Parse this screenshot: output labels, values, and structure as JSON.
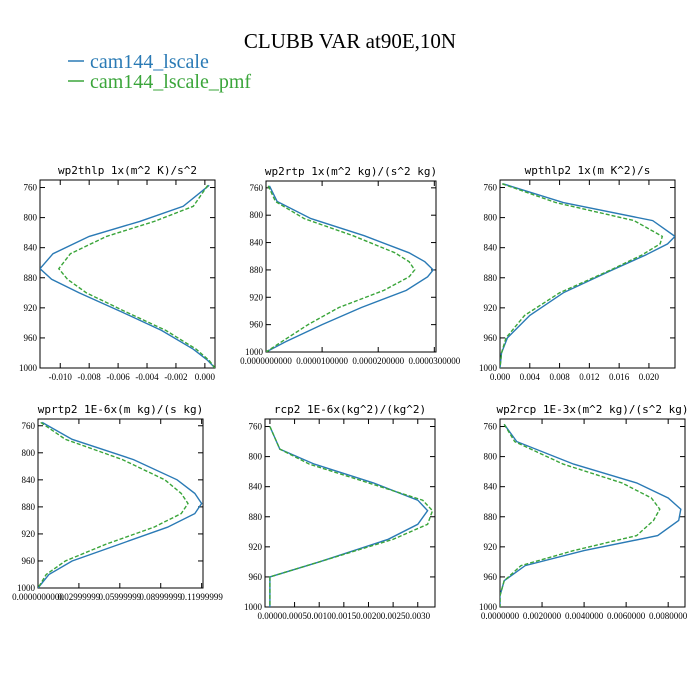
{
  "figure": {
    "title": "CLUBB VAR at90E,10N",
    "legend": [
      {
        "label": "cam144_lscale",
        "color": "#2a7ab5",
        "dash": false
      },
      {
        "label": "cam144_lscale_pmf",
        "color": "#3aa53a",
        "dash": true
      }
    ]
  },
  "chart_data": [
    {
      "type": "line",
      "title": "wp2thlp  1x(m^2 K)/s^2",
      "xlim": [
        -0.0114,
        0.0007
      ],
      "ylim": [
        1000,
        750
      ],
      "xticks": [
        -0.01,
        -0.008,
        -0.006,
        -0.004,
        -0.002,
        0.0
      ],
      "xtick_labels": [
        "-0.010",
        "-0.008",
        "-0.006",
        "-0.004",
        "-0.002",
        "0.000"
      ],
      "yticks": [
        760,
        800,
        840,
        880,
        920,
        960,
        1000
      ],
      "ytick_labels": [
        "760",
        "800",
        "840",
        "880",
        "920",
        "960",
        "1000"
      ],
      "y": [
        757,
        785,
        805,
        825,
        848,
        868,
        882,
        900,
        925,
        950,
        975,
        990,
        1000
      ],
      "series": [
        {
          "name": "cam144_lscale",
          "values": [
            0.0003,
            -0.0015,
            -0.0045,
            -0.008,
            -0.0105,
            -0.0114,
            -0.0106,
            -0.0087,
            -0.0058,
            -0.003,
            -0.0008,
            0.0002,
            0.0007
          ]
        },
        {
          "name": "cam144_lscale_pmf",
          "values": [
            0.0002,
            -0.0008,
            -0.0035,
            -0.0068,
            -0.0093,
            -0.0101,
            -0.0095,
            -0.0082,
            -0.0055,
            -0.0027,
            -0.0006,
            0.0003,
            0.0007
          ]
        }
      ]
    },
    {
      "type": "line",
      "title": "wp2rtp  1x(m^2 kg)/(s^2 kg)",
      "xlim": [
        0,
        3.03e-05
      ],
      "ylim": [
        1000,
        750
      ],
      "xticks": [
        0.0,
        1e-05,
        2e-05,
        3e-05
      ],
      "xtick_labels": [
        "0.0000000000",
        "0.0000100000",
        "0.0000200000",
        "0.0000300000"
      ],
      "yticks": [
        760,
        800,
        840,
        880,
        920,
        960,
        1000
      ],
      "ytick_labels": [
        "760",
        "800",
        "840",
        "880",
        "920",
        "960",
        "1000"
      ],
      "y": [
        757,
        780,
        805,
        830,
        855,
        868,
        880,
        890,
        910,
        935,
        960,
        985,
        1000
      ],
      "series": [
        {
          "name": "cam144_lscale",
          "values": [
            6e-07,
            2e-06,
            8e-06,
            1.75e-05,
            2.55e-05,
            2.83e-05,
            2.98e-05,
            2.88e-05,
            2.5e-05,
            1.7e-05,
            1e-05,
            3.5e-06,
            0.0
          ]
        },
        {
          "name": "cam144_lscale_pmf",
          "values": [
            4e-07,
            1.7e-06,
            6.8e-06,
            1.55e-05,
            2.3e-05,
            2.55e-05,
            2.65e-05,
            2.55e-05,
            2.1e-05,
            1.3e-05,
            7.5e-06,
            2.8e-06,
            0.0
          ]
        }
      ]
    },
    {
      "type": "line",
      "title": "wpthlp2  1x(m K^2)/s",
      "xlim": [
        0,
        0.0235
      ],
      "ylim": [
        1000,
        750
      ],
      "xticks": [
        0.0,
        0.004,
        0.008,
        0.012,
        0.016,
        0.02
      ],
      "xtick_labels": [
        "0.000",
        "0.004",
        "0.008",
        "0.012",
        "0.016",
        "0.020"
      ],
      "yticks": [
        760,
        800,
        840,
        880,
        920,
        960,
        1000
      ],
      "ytick_labels": [
        "760",
        "800",
        "840",
        "880",
        "920",
        "960",
        "1000"
      ],
      "y": [
        755,
        780,
        804,
        825,
        835,
        850,
        870,
        900,
        930,
        960,
        980,
        1000
      ],
      "series": [
        {
          "name": "cam144_lscale",
          "values": [
            0.0004,
            0.0085,
            0.0205,
            0.0235,
            0.0225,
            0.0195,
            0.015,
            0.0085,
            0.004,
            0.001,
            0.0002,
            0.0
          ]
        },
        {
          "name": "cam144_lscale_pmf",
          "values": [
            0.0003,
            0.0075,
            0.018,
            0.0218,
            0.0215,
            0.019,
            0.0148,
            0.008,
            0.0033,
            0.0008,
            0.0002,
            0.0
          ]
        }
      ]
    },
    {
      "type": "line",
      "title": "wprtp2  1E-6x(m kg)/(s kg)",
      "xlim": [
        0,
        0.121
      ],
      "ylim": [
        1000,
        750
      ],
      "xticks": [
        0.0,
        0.03,
        0.06,
        0.09,
        0.12
      ],
      "xtick_labels": [
        "0.0000000000",
        "0.02999999",
        "0.05999999",
        "0.08999999",
        "0.11999999"
      ],
      "yticks": [
        760,
        800,
        840,
        880,
        920,
        960,
        1000
      ],
      "ytick_labels": [
        "760",
        "800",
        "840",
        "880",
        "920",
        "960",
        "1000"
      ],
      "y": [
        755,
        780,
        810,
        840,
        860,
        875,
        890,
        910,
        935,
        960,
        980,
        1000
      ],
      "series": [
        {
          "name": "cam144_lscale",
          "values": [
            0.003,
            0.025,
            0.07,
            0.102,
            0.115,
            0.12,
            0.115,
            0.095,
            0.06,
            0.025,
            0.008,
            0.0
          ]
        },
        {
          "name": "cam144_lscale_pmf",
          "values": [
            0.002,
            0.02,
            0.062,
            0.093,
            0.105,
            0.11,
            0.105,
            0.085,
            0.05,
            0.02,
            0.006,
            0.0
          ]
        }
      ]
    },
    {
      "type": "line",
      "title": "rcp2  1E-6x(kg^2)/(kg^2)",
      "xlim": [
        -0.0001,
        0.00335
      ],
      "ylim": [
        1000,
        750
      ],
      "xticks": [
        0.0,
        0.0005,
        0.001,
        0.0015,
        0.002,
        0.0025,
        0.003
      ],
      "xtick_labels": [
        "0.0000",
        "0.0005",
        "0.0010",
        "0.0015",
        "0.0020",
        "0.0025",
        "0.0030"
      ],
      "yticks": [
        760,
        800,
        840,
        880,
        920,
        960,
        1000
      ],
      "ytick_labels": [
        "760",
        "800",
        "840",
        "880",
        "920",
        "960",
        "1000"
      ],
      "y": [
        760,
        790,
        810,
        835,
        858,
        872,
        890,
        910,
        940,
        960,
        975,
        1000
      ],
      "series": [
        {
          "name": "cam144_lscale",
          "values": [
            0.0,
            0.0002,
            0.0009,
            0.0021,
            0.003,
            0.0032,
            0.003,
            0.0024,
            0.001,
            0.0,
            0.0,
            0.0
          ]
        },
        {
          "name": "cam144_lscale_pmf",
          "values": [
            0.0,
            0.0002,
            0.0008,
            0.002,
            0.0031,
            0.0033,
            0.0032,
            0.0025,
            0.001,
            0.0,
            0.0,
            0.0
          ]
        }
      ]
    },
    {
      "type": "line",
      "title": "wp2rcp  1E-3x(m^2 kg)/(s^2 kg)",
      "xlim": [
        0,
        0.0088
      ],
      "ylim": [
        1000,
        750
      ],
      "xticks": [
        0.0,
        0.002,
        0.004,
        0.006,
        0.008
      ],
      "xtick_labels": [
        "0.0000000",
        "0.0020000",
        "0.0040000",
        "0.0060000",
        "0.0080000"
      ],
      "yticks": [
        760,
        800,
        840,
        880,
        920,
        960,
        1000
      ],
      "ytick_labels": [
        "760",
        "800",
        "840",
        "880",
        "920",
        "960",
        "1000"
      ],
      "y": [
        757,
        780,
        810,
        835,
        855,
        870,
        885,
        905,
        925,
        945,
        965,
        985,
        1000
      ],
      "series": [
        {
          "name": "cam144_lscale",
          "values": [
            0.0002,
            0.0008,
            0.0035,
            0.0065,
            0.008,
            0.0086,
            0.0085,
            0.0075,
            0.004,
            0.0012,
            0.0002,
            0.0,
            0.0
          ]
        },
        {
          "name": "cam144_lscale_pmf",
          "values": [
            0.0002,
            0.0007,
            0.003,
            0.0058,
            0.0072,
            0.0076,
            0.0073,
            0.0065,
            0.0035,
            0.001,
            0.0002,
            0.0,
            0.0
          ]
        }
      ]
    }
  ]
}
